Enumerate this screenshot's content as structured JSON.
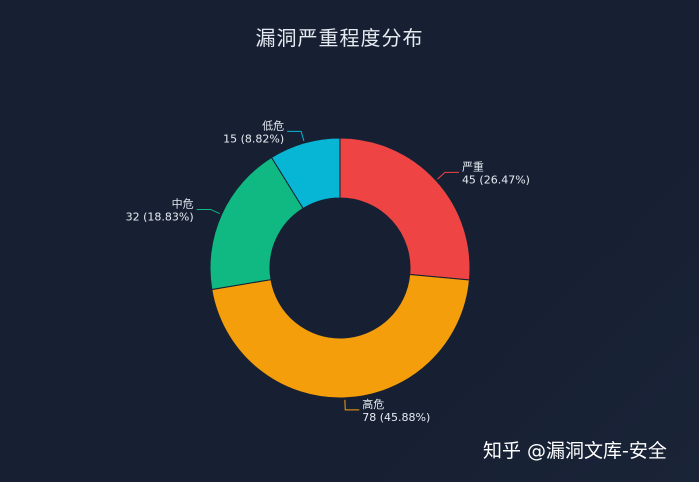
{
  "chart_data": {
    "type": "pie",
    "title": "漏洞严重程度分布",
    "slices": [
      {
        "name": "严重",
        "value": 45,
        "percent": "26.47%",
        "color": "#ef4444"
      },
      {
        "name": "高危",
        "value": 78,
        "percent": "45.88%",
        "color": "#f59e0b"
      },
      {
        "name": "中危",
        "value": 32,
        "percent": "18.83%",
        "color": "#10b981"
      },
      {
        "name": "低危",
        "value": 15,
        "percent": "8.82%",
        "color": "#06b6d4"
      }
    ],
    "legend": false,
    "background": "#172033"
  },
  "watermark": "知乎 @漏洞文库-安全"
}
